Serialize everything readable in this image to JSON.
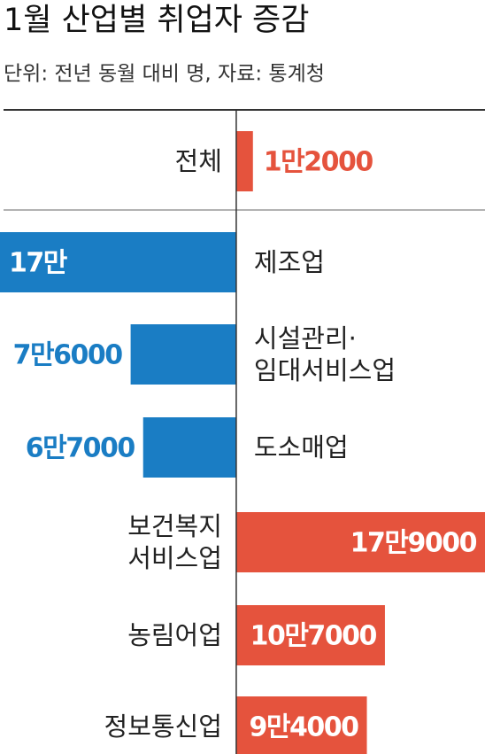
{
  "chart_data": {
    "type": "diverging-bar",
    "title": "1월 산업별 취업자 증감",
    "subtitle": "단위: 전년 동월 대비 명, 자료: 통계청",
    "categories": [
      [
        "전체"
      ],
      [
        "제조업"
      ],
      [
        "시설관리·",
        "임대서비스업"
      ],
      [
        "도소매업"
      ],
      [
        "보건복지",
        "서비스업"
      ],
      [
        "농림어업"
      ],
      [
        "정보통신업"
      ]
    ],
    "values": [
      12000,
      -170000,
      -76000,
      -67000,
      179000,
      107000,
      94000
    ],
    "value_labels": [
      "1만2000",
      "17만",
      "7만6000",
      "6만7000",
      "17만9000",
      "10만7000",
      "9만4000"
    ],
    "positive_color": "#e5533d",
    "negative_color": "#1a7dc4",
    "xlim": [
      -170000,
      179000
    ]
  }
}
